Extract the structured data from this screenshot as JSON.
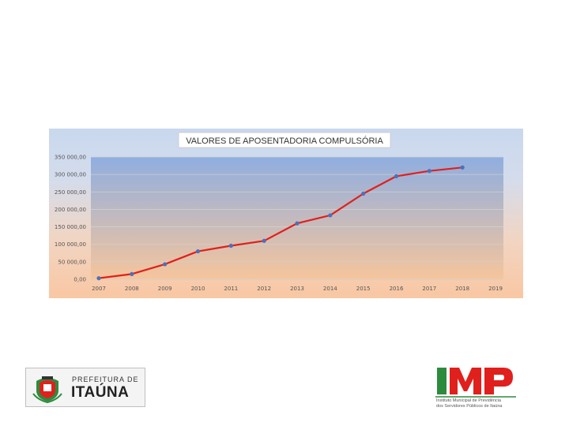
{
  "chart_data": {
    "type": "line",
    "title": "VALORES DE APOSENTADORIA COMPULSÓRIA",
    "x": [
      "2007",
      "2008",
      "2009",
      "2010",
      "2011",
      "2012",
      "2013",
      "2014",
      "2015",
      "2016",
      "2017",
      "2018"
    ],
    "x_ticks": [
      "2007",
      "2008",
      "2009",
      "2010",
      "2011",
      "2012",
      "2013",
      "2014",
      "2015",
      "2016",
      "2017",
      "2018",
      "2019"
    ],
    "values": [
      3000,
      15000,
      43000,
      80000,
      96000,
      110000,
      160000,
      183000,
      245000,
      295000,
      310000,
      320000
    ],
    "ylim": [
      0,
      350000
    ],
    "y_ticks": [
      0,
      50000,
      100000,
      150000,
      200000,
      250000,
      300000,
      350000
    ],
    "y_tick_labels": [
      "0,00",
      "50 000,00",
      "100 000,00",
      "150 000,00",
      "200 000,00",
      "250 000,00",
      "300 000,00",
      "350 000,00"
    ],
    "grid": true,
    "line_color": "#e0201c",
    "marker_color": "#4f6fb8",
    "plot_gradient": [
      "#8faee0",
      "#f6c59c"
    ]
  },
  "logo_left": {
    "line1": "PREFEITURA DE",
    "line2": "ITAÚNA"
  },
  "logo_right": {
    "letters": "IMP",
    "sub1": "Instituto Municipal de Previdência",
    "sub2": "dos Servidores Públicos de Itaúna",
    "colors": {
      "I": "#2e8b3e",
      "M": "#e0201c",
      "P": "#e0201c"
    }
  }
}
